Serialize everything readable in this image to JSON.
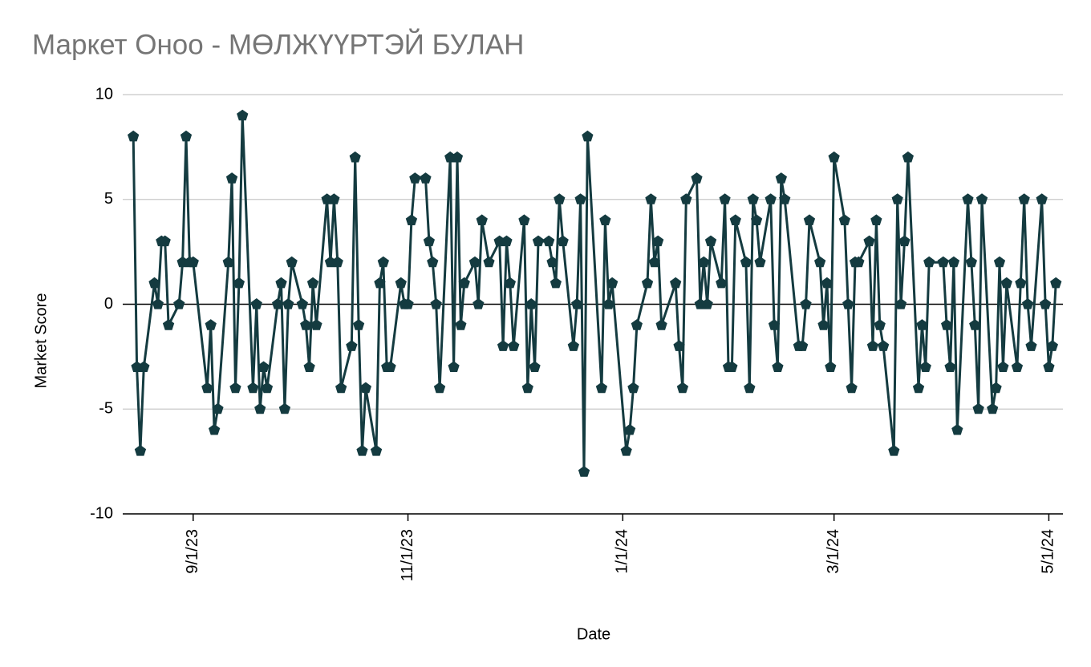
{
  "chart_data": {
    "type": "line",
    "title": "Маркет Оноо - МӨЛЖҮҮРТЭЙ БУЛАН",
    "x_label": "Date",
    "y_label": "Market Score",
    "x": [
      "2023-08-15",
      "2023-08-16",
      "2023-08-17",
      "2023-08-18",
      "2023-08-21",
      "2023-08-22",
      "2023-08-23",
      "2023-08-24",
      "2023-08-25",
      "2023-08-28",
      "2023-08-29",
      "2023-08-30",
      "2023-08-31",
      "2023-09-01",
      "2023-09-05",
      "2023-09-06",
      "2023-09-07",
      "2023-09-08",
      "2023-09-11",
      "2023-09-12",
      "2023-09-13",
      "2023-09-14",
      "2023-09-15",
      "2023-09-18",
      "2023-09-19",
      "2023-09-20",
      "2023-09-21",
      "2023-09-22",
      "2023-09-25",
      "2023-09-26",
      "2023-09-27",
      "2023-09-28",
      "2023-09-29",
      "2023-10-02",
      "2023-10-03",
      "2023-10-04",
      "2023-10-05",
      "2023-10-06",
      "2023-10-09",
      "2023-10-10",
      "2023-10-11",
      "2023-10-12",
      "2023-10-13",
      "2023-10-16",
      "2023-10-17",
      "2023-10-18",
      "2023-10-19",
      "2023-10-20",
      "2023-10-23",
      "2023-10-24",
      "2023-10-25",
      "2023-10-26",
      "2023-10-27",
      "2023-10-30",
      "2023-10-31",
      "2023-11-01",
      "2023-11-02",
      "2023-11-03",
      "2023-11-06",
      "2023-11-07",
      "2023-11-08",
      "2023-11-09",
      "2023-11-10",
      "2023-11-13",
      "2023-11-14",
      "2023-11-15",
      "2023-11-16",
      "2023-11-17",
      "2023-11-20",
      "2023-11-21",
      "2023-11-22",
      "2023-11-24",
      "2023-11-27",
      "2023-11-28",
      "2023-11-29",
      "2023-11-30",
      "2023-12-01",
      "2023-12-04",
      "2023-12-05",
      "2023-12-06",
      "2023-12-07",
      "2023-12-08",
      "2023-12-11",
      "2023-12-12",
      "2023-12-13",
      "2023-12-14",
      "2023-12-15",
      "2023-12-18",
      "2023-12-19",
      "2023-12-20",
      "2023-12-21",
      "2023-12-22",
      "2023-12-26",
      "2023-12-27",
      "2023-12-28",
      "2023-12-29",
      "2024-01-02",
      "2024-01-03",
      "2024-01-04",
      "2024-01-05",
      "2024-01-08",
      "2024-01-09",
      "2024-01-10",
      "2024-01-11",
      "2024-01-12",
      "2024-01-16",
      "2024-01-17",
      "2024-01-18",
      "2024-01-19",
      "2024-01-22",
      "2024-01-23",
      "2024-01-24",
      "2024-01-25",
      "2024-01-26",
      "2024-01-29",
      "2024-01-30",
      "2024-01-31",
      "2024-02-01",
      "2024-02-02",
      "2024-02-05",
      "2024-02-06",
      "2024-02-07",
      "2024-02-08",
      "2024-02-09",
      "2024-02-12",
      "2024-02-13",
      "2024-02-14",
      "2024-02-15",
      "2024-02-16",
      "2024-02-20",
      "2024-02-21",
      "2024-02-22",
      "2024-02-23",
      "2024-02-26",
      "2024-02-27",
      "2024-02-28",
      "2024-02-29",
      "2024-03-01",
      "2024-03-04",
      "2024-03-05",
      "2024-03-06",
      "2024-03-07",
      "2024-03-08",
      "2024-03-11",
      "2024-03-12",
      "2024-03-13",
      "2024-03-14",
      "2024-03-15",
      "2024-03-18",
      "2024-03-19",
      "2024-03-20",
      "2024-03-21",
      "2024-03-22",
      "2024-03-25",
      "2024-03-26",
      "2024-03-27",
      "2024-03-28",
      "2024-04-01",
      "2024-04-02",
      "2024-04-03",
      "2024-04-04",
      "2024-04-05",
      "2024-04-08",
      "2024-04-09",
      "2024-04-10",
      "2024-04-11",
      "2024-04-12",
      "2024-04-15",
      "2024-04-16",
      "2024-04-17",
      "2024-04-18",
      "2024-04-19",
      "2024-04-22",
      "2024-04-23",
      "2024-04-24",
      "2024-04-25",
      "2024-04-26",
      "2024-04-29",
      "2024-04-30",
      "2024-05-01",
      "2024-05-02",
      "2024-05-03"
    ],
    "series": [
      {
        "name": "Market Score",
        "color": "#143b40",
        "values": [
          8,
          -3,
          -7,
          -3,
          1,
          0,
          3,
          3,
          -1,
          0,
          2,
          8,
          2,
          2,
          -4,
          -1,
          -6,
          -5,
          2,
          6,
          -4,
          1,
          9,
          -4,
          0,
          -5,
          -3,
          -4,
          0,
          1,
          -5,
          0,
          2,
          0,
          -1,
          -3,
          1,
          -1,
          5,
          2,
          5,
          2,
          -4,
          -2,
          7,
          -1,
          -7,
          -4,
          -7,
          1,
          2,
          -3,
          -3,
          1,
          0,
          0,
          4,
          6,
          6,
          3,
          2,
          0,
          -4,
          7,
          -3,
          7,
          -1,
          1,
          2,
          0,
          4,
          2,
          3,
          -2,
          3,
          1,
          -2,
          4,
          -4,
          0,
          -3,
          3,
          3,
          2,
          1,
          5,
          3,
          -2,
          0,
          5,
          -8,
          8,
          -4,
          4,
          0,
          1,
          -7,
          -6,
          -4,
          -1,
          1,
          5,
          2,
          3,
          -1,
          1,
          -2,
          -4,
          5,
          6,
          0,
          2,
          0,
          3,
          1,
          5,
          -3,
          -3,
          4,
          2,
          -4,
          5,
          4,
          2,
          5,
          -1,
          -3,
          6,
          5,
          -2,
          -2,
          0,
          4,
          2,
          -1,
          1,
          -3,
          7,
          4,
          0,
          -4,
          2,
          2,
          3,
          -2,
          4,
          -1,
          -2,
          -7,
          5,
          0,
          3,
          7,
          -4,
          -1,
          -3,
          2,
          2,
          -1,
          -3,
          2,
          -6,
          5,
          2,
          -1,
          -5,
          5,
          -5,
          -4,
          2,
          -3,
          1,
          -3,
          1,
          5,
          0,
          -2,
          5,
          0,
          -3,
          -2,
          1
        ]
      }
    ],
    "xlim": [
      "2023-08-12",
      "2024-05-05"
    ],
    "xticks": [
      {
        "value": "2023-09-01",
        "label": "9/1/23"
      },
      {
        "value": "2023-11-01",
        "label": "11/1/23"
      },
      {
        "value": "2024-01-01",
        "label": "1/1/24"
      },
      {
        "value": "2024-03-01",
        "label": "3/1/24"
      },
      {
        "value": "2024-05-01",
        "label": "5/1/24"
      }
    ],
    "ylim": [
      -10,
      10
    ],
    "yticks": [
      -10,
      -5,
      0,
      5,
      10
    ],
    "grid": true
  }
}
